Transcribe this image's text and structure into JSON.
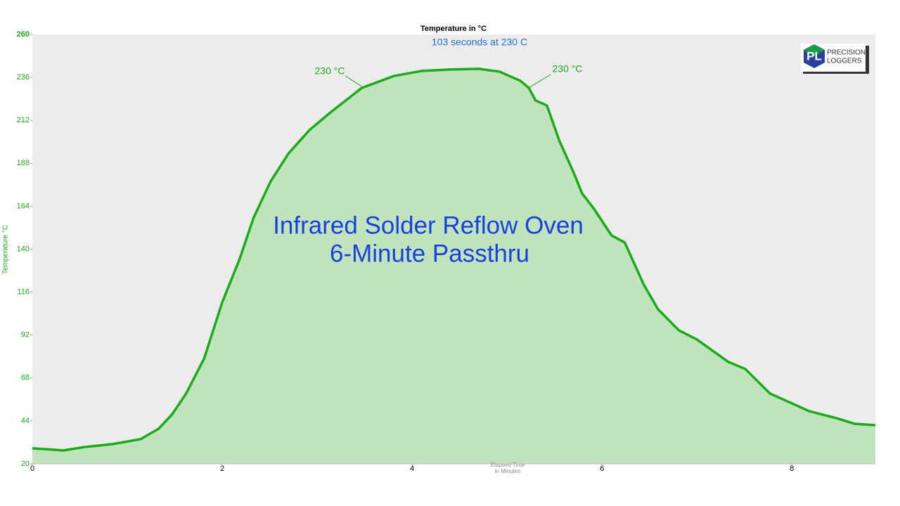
{
  "chart_data": {
    "type": "area",
    "title": "Infrared Solder Reflow Oven",
    "subtitle": "6-Minute Passthru",
    "top_label": "Temperature in °C",
    "summary": "103 seconds at 230 C",
    "y_label": "Temperature °C",
    "x_label": [
      "Elapsed Time",
      "in Minutes"
    ],
    "annotations": [
      "230 °C",
      "230 °C"
    ],
    "logo": {
      "mark": "PL",
      "lines": [
        "PRECISION",
        "LOGGERS"
      ]
    },
    "x": [
      0,
      0.33,
      0.55,
      0.84,
      1.14,
      1.33,
      1.47,
      1.62,
      1.81,
      2.0,
      2.18,
      2.33,
      2.51,
      2.7,
      2.92,
      3.14,
      3.47,
      3.81,
      4.1,
      4.4,
      4.7,
      4.92,
      5.14,
      5.23,
      5.3,
      5.42,
      5.55,
      5.7,
      5.79,
      5.92,
      6.1,
      6.24,
      6.44,
      6.59,
      6.81,
      7.0,
      7.33,
      7.51,
      7.77,
      8.18,
      8.47,
      8.66,
      8.88
    ],
    "series": [
      {
        "name": "Temperature",
        "color": "#1aaa1a",
        "fill": "#bfe3bb",
        "values": [
          28.7,
          27.5,
          29.4,
          31.0,
          33.8,
          39.6,
          47.5,
          59.3,
          78.9,
          110.3,
          134,
          157.5,
          177.9,
          193.6,
          206.6,
          216.4,
          230.1,
          236.8,
          239.6,
          240.4,
          240.8,
          239.2,
          234.1,
          230.1,
          223.1,
          220.3,
          200.7,
          183.0,
          171.2,
          162.2,
          147.7,
          143.7,
          120.2,
          106.4,
          94.6,
          89.5,
          77.0,
          73.0,
          59.3,
          49.5,
          45.5,
          42.4,
          41.6
        ]
      }
    ],
    "xlim": [
      0,
      8.88
    ],
    "ylim": [
      20,
      260
    ],
    "xticks": [
      0,
      2,
      4,
      6,
      8
    ],
    "yticks": [
      20,
      44,
      68,
      92,
      116,
      140,
      164,
      188,
      212,
      236,
      260
    ],
    "background": "#ececec"
  }
}
